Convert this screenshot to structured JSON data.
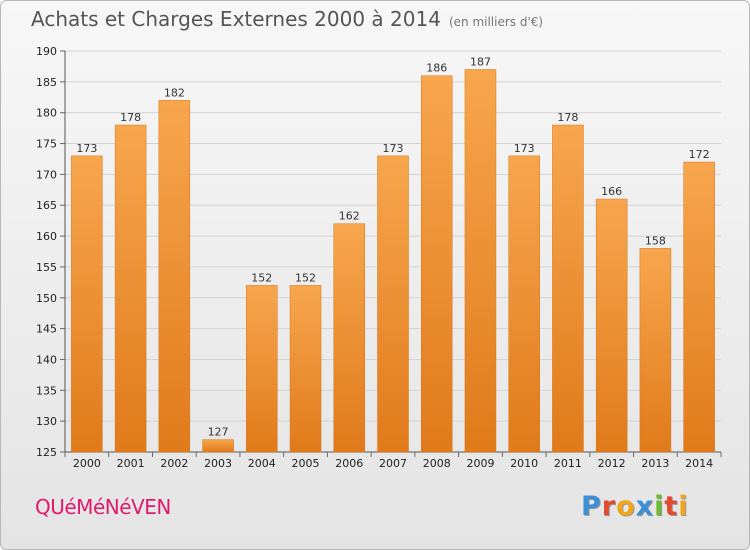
{
  "header": {
    "title": "Achats et Charges Externes 2000 à 2014",
    "unit": "(en milliers d'€)"
  },
  "footer": {
    "commune": "QUéMéNéVEN",
    "brand": [
      "P",
      "r",
      "o",
      "x",
      "i",
      "t",
      "i"
    ]
  },
  "colors": {
    "bar_top": "#f7a64e",
    "bar_bottom": "#e07a1a",
    "commune": "#e21a6e",
    "brand_letters": [
      "#3b8fd6",
      "#e24a2e",
      "#f2a51a",
      "#3b8fd6",
      "#6dbb2e",
      "#e24a2e",
      "#f2a51a"
    ]
  },
  "chart_data": {
    "type": "bar",
    "categories": [
      "2000",
      "2001",
      "2002",
      "2003",
      "2004",
      "2005",
      "2006",
      "2007",
      "2008",
      "2009",
      "2010",
      "2011",
      "2012",
      "2013",
      "2014"
    ],
    "values": [
      173,
      178,
      182,
      127,
      152,
      152,
      162,
      173,
      186,
      187,
      173,
      178,
      166,
      158,
      172
    ],
    "title": "Achats et Charges Externes 2000 à 2014",
    "ylim": [
      125,
      190
    ],
    "yticks": [
      125,
      130,
      135,
      140,
      145,
      150,
      155,
      160,
      165,
      170,
      175,
      180,
      185,
      190
    ],
    "grid": true
  }
}
